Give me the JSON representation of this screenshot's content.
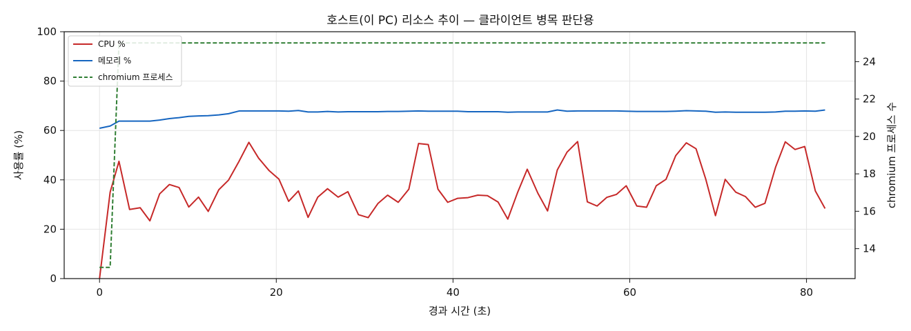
{
  "chart_data": {
    "type": "line",
    "title": "호스트(이 PC) 리소스 추이 — 클라이언트 병목 판단용",
    "xlabel": "경과 시간 (초)",
    "ylabel": "사용률 (%)",
    "y2label": "chromium 프로세스 수",
    "xlim": [
      -4,
      85.5
    ],
    "ylim": [
      0,
      100
    ],
    "y2lim": [
      12.4,
      25.6
    ],
    "xticks": [
      0,
      20,
      40,
      60,
      80
    ],
    "yticks": [
      0,
      20,
      40,
      60,
      80,
      100
    ],
    "y2ticks": [
      14,
      16,
      18,
      20,
      22,
      24
    ],
    "grid": true,
    "legend_position": "top-left",
    "series": [
      {
        "name": "CPU %",
        "axis": "left",
        "color": "#c62828",
        "style": "solid",
        "x": [
          0,
          1.2,
          2.2,
          3.4,
          4.6,
          5.7,
          6.8,
          7.9,
          9.0,
          10.1,
          11.2,
          12.3,
          13.5,
          14.6,
          15.8,
          16.9,
          18.0,
          19.2,
          20.3,
          21.4,
          22.5,
          23.6,
          24.7,
          25.8,
          27.0,
          28.1,
          29.3,
          30.4,
          31.5,
          32.6,
          33.8,
          35.0,
          36.1,
          37.2,
          38.3,
          39.4,
          40.5,
          41.7,
          42.8,
          43.9,
          45.1,
          46.2,
          47.3,
          48.4,
          49.6,
          50.7,
          51.8,
          52.9,
          54.1,
          55.2,
          56.3,
          57.4,
          58.5,
          59.6,
          60.8,
          61.9,
          63.0,
          64.1,
          65.2,
          66.4,
          67.5,
          68.6,
          69.7,
          70.8,
          72.0,
          73.1,
          74.2,
          75.3,
          76.5,
          77.6,
          78.7,
          79.8,
          81.0,
          82.1
        ],
        "values": [
          0,
          35,
          47.5,
          28,
          28.7,
          23.4,
          34.3,
          38.1,
          36.9,
          29,
          33,
          27.2,
          36,
          39.9,
          47.6,
          55.2,
          48.8,
          43.7,
          40.3,
          31.3,
          35.5,
          24.8,
          33,
          36.4,
          33,
          35.2,
          25.9,
          24.7,
          30.4,
          33.8,
          30.9,
          36.2,
          54.7,
          54.3,
          36.2,
          30.9,
          32.5,
          32.8,
          33.8,
          33.6,
          31,
          24.1,
          34.8,
          44.3,
          34.6,
          27.4,
          44,
          51.2,
          55.5,
          31.1,
          29.4,
          32.9,
          34.1,
          37.6,
          29.4,
          28.9,
          37.6,
          40.2,
          49.8,
          55,
          52.6,
          40.3,
          25.5,
          40.2,
          35,
          33.2,
          28.9,
          30.5,
          45.1,
          55.4,
          52.3,
          53.5,
          35.5,
          28.4
        ]
      },
      {
        "name": "메모리 %",
        "axis": "left",
        "color": "#1565c0",
        "style": "solid",
        "x": [
          0,
          1.2,
          2.2,
          3.4,
          4.6,
          5.7,
          6.8,
          7.9,
          9.0,
          10.1,
          11.2,
          12.3,
          13.5,
          14.6,
          15.8,
          16.9,
          18.0,
          19.2,
          20.3,
          21.4,
          22.5,
          23.6,
          24.7,
          25.8,
          27.0,
          28.1,
          29.3,
          30.4,
          31.5,
          32.6,
          33.8,
          35.0,
          36.1,
          37.2,
          38.3,
          39.4,
          40.5,
          41.7,
          42.8,
          43.9,
          45.1,
          46.2,
          47.3,
          48.4,
          49.6,
          50.7,
          51.8,
          52.9,
          54.1,
          55.2,
          56.3,
          57.4,
          58.5,
          59.6,
          60.8,
          61.9,
          63.0,
          64.1,
          65.2,
          66.4,
          67.5,
          68.6,
          69.7,
          70.8,
          72.0,
          73.1,
          74.2,
          75.3,
          76.5,
          77.6,
          78.7,
          79.8,
          81.0,
          82.1
        ],
        "values": [
          60.9,
          61.8,
          63.8,
          63.8,
          63.8,
          63.8,
          64.2,
          64.8,
          65.2,
          65.7,
          65.9,
          66.0,
          66.3,
          66.8,
          67.9,
          67.9,
          67.9,
          67.9,
          67.9,
          67.8,
          68.1,
          67.5,
          67.5,
          67.7,
          67.5,
          67.6,
          67.6,
          67.6,
          67.6,
          67.7,
          67.7,
          67.8,
          67.9,
          67.8,
          67.8,
          67.8,
          67.8,
          67.6,
          67.6,
          67.6,
          67.6,
          67.4,
          67.5,
          67.5,
          67.5,
          67.5,
          68.3,
          67.8,
          67.9,
          67.9,
          67.9,
          67.9,
          67.9,
          67.8,
          67.7,
          67.7,
          67.7,
          67.7,
          67.8,
          68.0,
          67.9,
          67.8,
          67.4,
          67.5,
          67.4,
          67.4,
          67.4,
          67.4,
          67.5,
          67.8,
          67.8,
          67.9,
          67.8,
          68.3
        ]
      },
      {
        "name": "chromium 프로세스",
        "axis": "right",
        "color": "#2e7d32",
        "style": "dashed",
        "x": [
          0,
          1.2,
          2.2,
          3.4,
          82.1
        ],
        "values": [
          13,
          13,
          25,
          25,
          25
        ]
      }
    ]
  }
}
